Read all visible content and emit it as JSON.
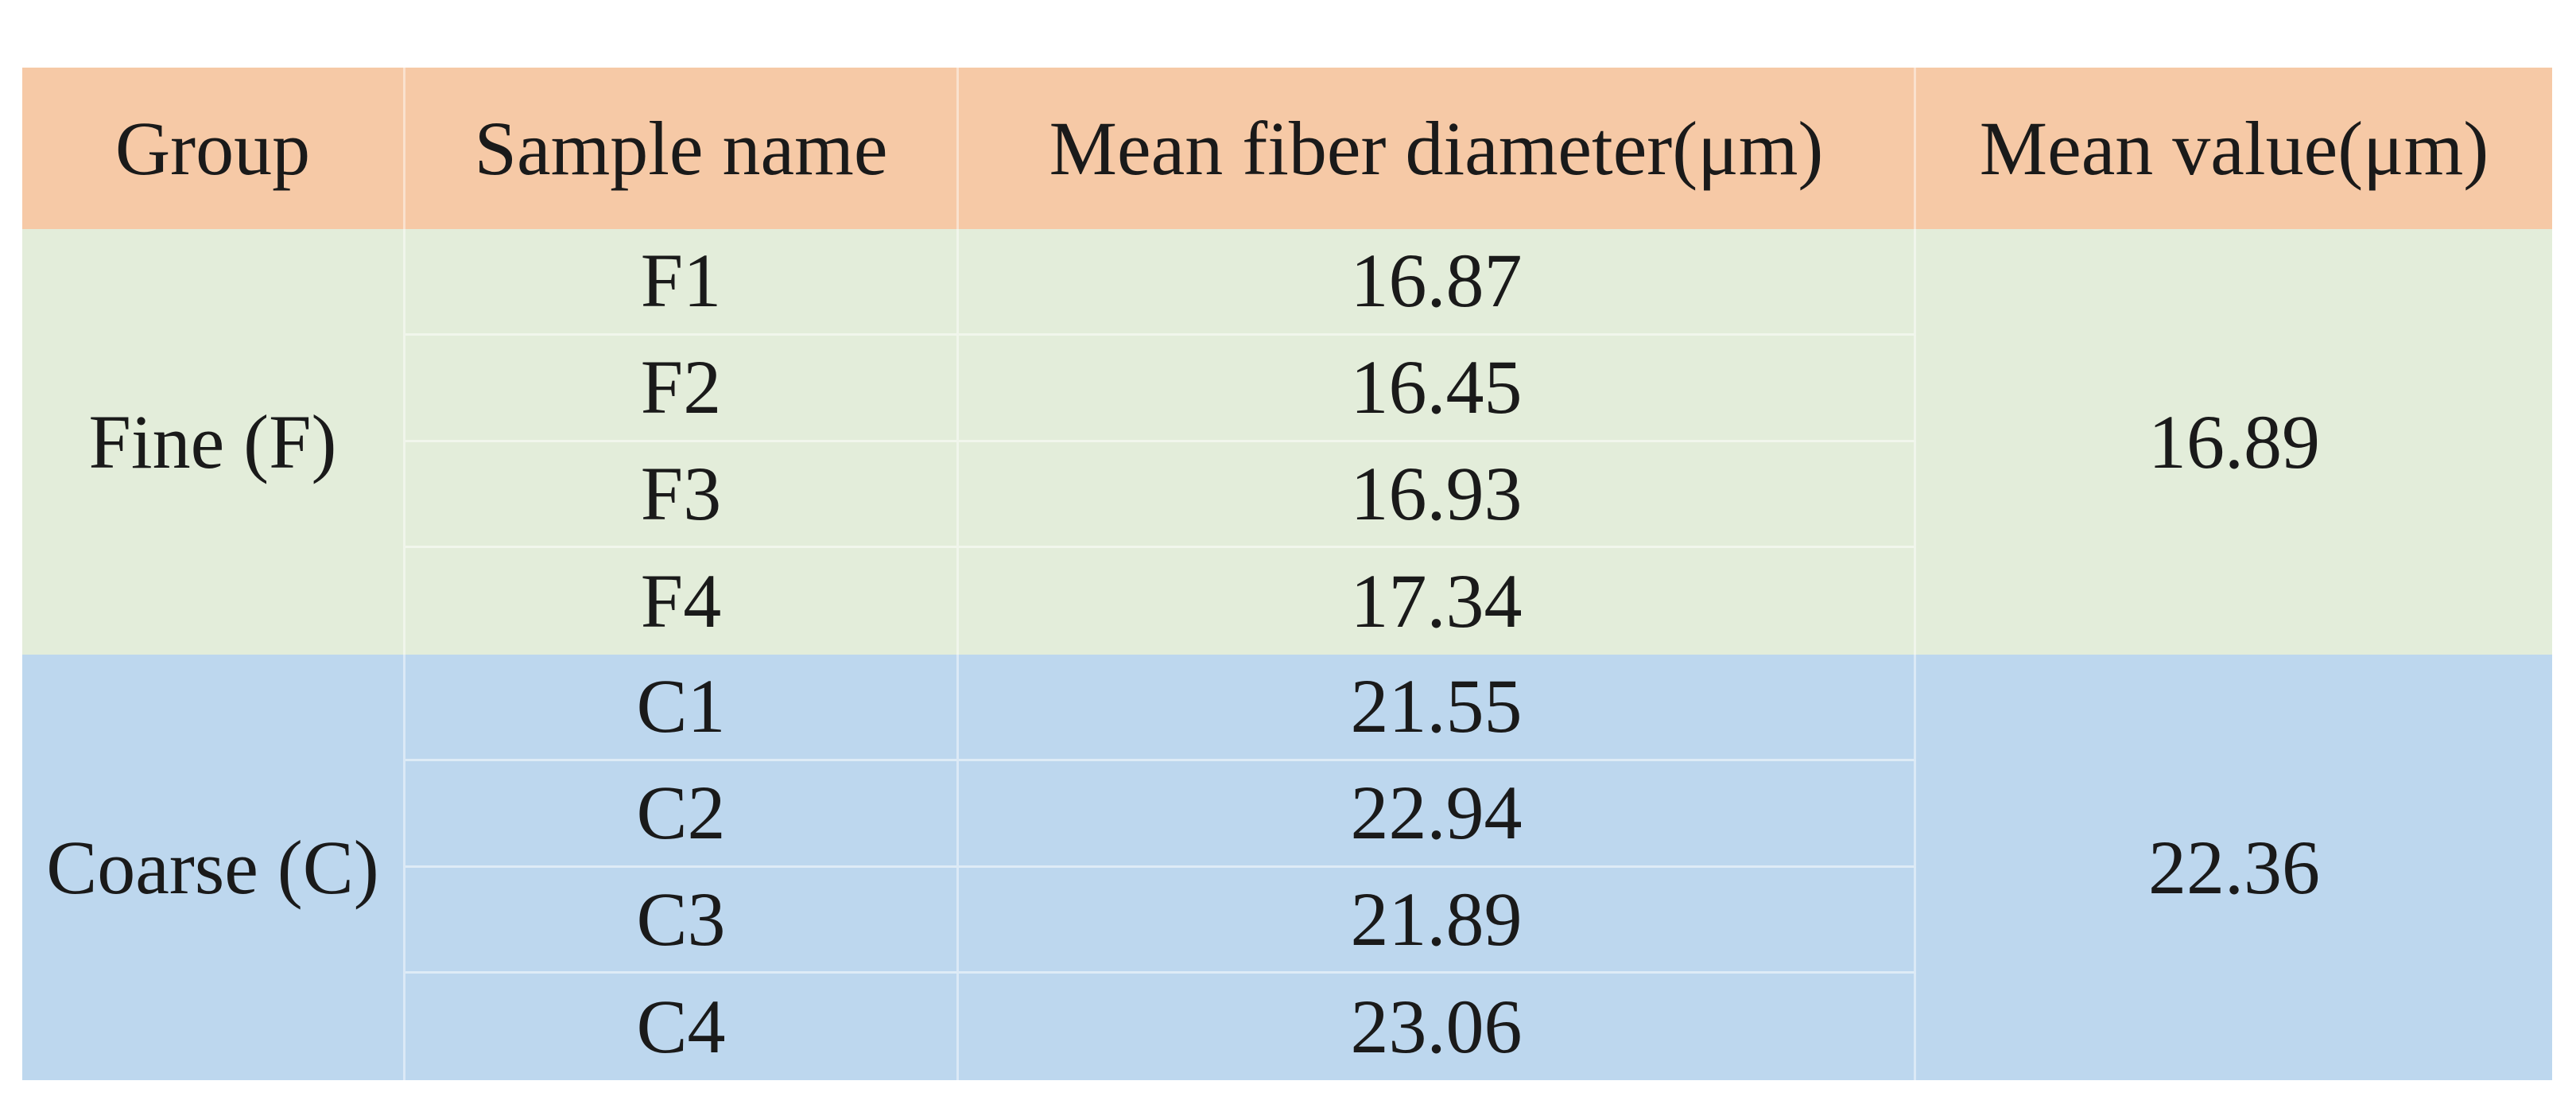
{
  "chart_data": {
    "type": "table",
    "columns": [
      "Group",
      "Sample name",
      "Mean fiber diameter(μm)",
      "Mean value(μm)"
    ],
    "groups": [
      {
        "group": "Fine (F)",
        "mean_value": "16.89",
        "samples": [
          {
            "name": "F1",
            "diameter": "16.87"
          },
          {
            "name": "F2",
            "diameter": "16.45"
          },
          {
            "name": "F3",
            "diameter": "16.93"
          },
          {
            "name": "F4",
            "diameter": "17.34"
          }
        ]
      },
      {
        "group": "Coarse (C)",
        "mean_value": "22.36",
        "samples": [
          {
            "name": "C1",
            "diameter": "21.55"
          },
          {
            "name": "C2",
            "diameter": "22.94"
          },
          {
            "name": "C3",
            "diameter": "21.89"
          },
          {
            "name": "C4",
            "diameter": "23.06"
          }
        ]
      }
    ]
  },
  "colors": {
    "header_bg": "#F6C9A6",
    "fine_group_bg": "#E3EDDA",
    "coarse_group_bg": "#BDD7EE",
    "text": "#1A1A1A",
    "gridline": "rgba(255,255,255,0.45)",
    "page_bg": "#FFFFFF"
  }
}
